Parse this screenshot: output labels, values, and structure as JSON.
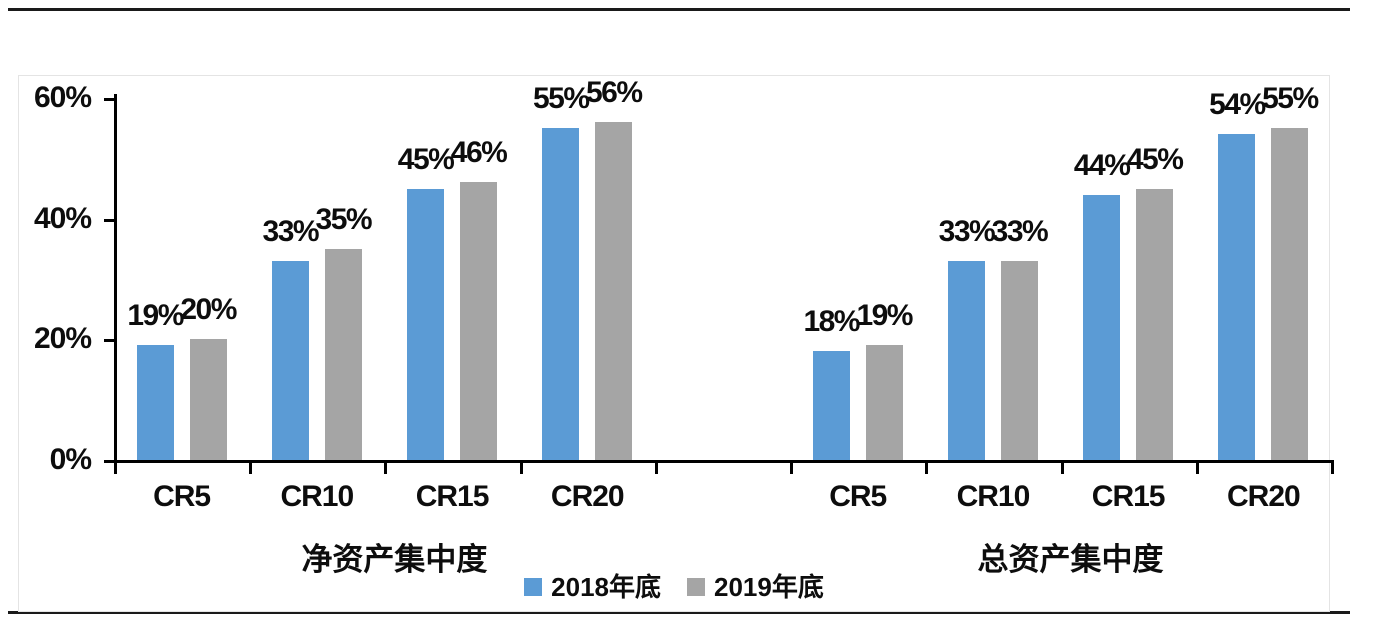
{
  "chart_data": {
    "type": "bar",
    "title": "",
    "y_axis": {
      "tick_labels": [
        "0%",
        "20%",
        "40%",
        "60%"
      ],
      "tick_values": [
        0,
        20,
        40,
        60
      ],
      "min": 0,
      "max": 60,
      "unit": "%"
    },
    "categories": [
      "CR5",
      "CR10",
      "CR15",
      "CR20"
    ],
    "grid": false,
    "axis_color": "#000000",
    "series_names": [
      "2018年底",
      "2019年底"
    ],
    "series_colors": [
      "#5B9BD5",
      "#A5A5A5"
    ],
    "groups": [
      {
        "label": "净资产集中度",
        "series": [
          {
            "name": "2018年底",
            "color": "#5B9BD5",
            "values": [
              19,
              33,
              45,
              55
            ],
            "labels": [
              "19%",
              "33%",
              "45%",
              "55%"
            ]
          },
          {
            "name": "2019年底",
            "color": "#A5A5A5",
            "values": [
              20,
              35,
              46,
              56
            ],
            "labels": [
              "20%",
              "35%",
              "46%",
              "56%"
            ]
          }
        ]
      },
      {
        "label": "总资产集中度",
        "series": [
          {
            "name": "2018年底",
            "color": "#5B9BD5",
            "values": [
              18,
              33,
              44,
              54
            ],
            "labels": [
              "18%",
              "33%",
              "44%",
              "54%"
            ]
          },
          {
            "name": "2019年底",
            "color": "#A5A5A5",
            "values": [
              19,
              33,
              45,
              55
            ],
            "labels": [
              "19%",
              "33%",
              "45%",
              "55%"
            ]
          }
        ]
      }
    ],
    "legend": {
      "position": "bottom-center",
      "items": [
        {
          "label": "2018年底",
          "color": "#5B9BD5"
        },
        {
          "label": "2019年底",
          "color": "#A5A5A5"
        }
      ]
    }
  }
}
